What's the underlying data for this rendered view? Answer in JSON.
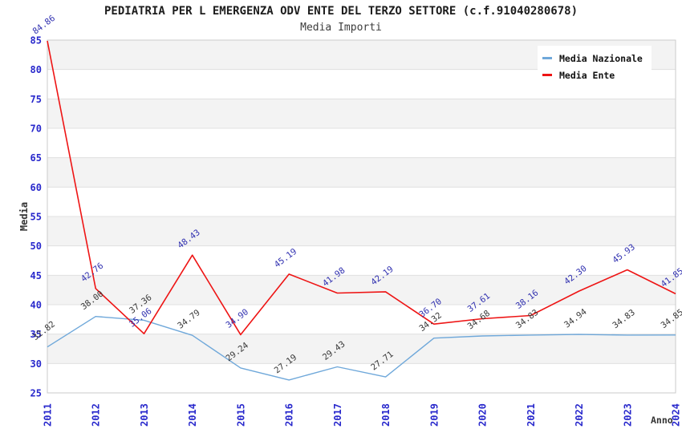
{
  "chart_data": {
    "type": "line",
    "title": "PEDIATRIA PER L EMERGENZA ODV ENTE DEL TERZO SETTORE (c.f.91040280678)",
    "subtitle": "Media Importi",
    "xlabel": "Anno",
    "ylabel": "Media",
    "x": [
      "2011",
      "2012",
      "2013",
      "2014",
      "2015",
      "2016",
      "2017",
      "2018",
      "2019",
      "2020",
      "2021",
      "2022",
      "2023",
      "2024"
    ],
    "ylim": [
      25,
      85
    ],
    "ytick_step": 5,
    "grid": true,
    "legend_position": "top-right",
    "series": [
      {
        "name": "Media Nazionale",
        "color": "#6fa8da",
        "label_color": "#383838",
        "values": [
          32.82,
          38.0,
          37.36,
          34.79,
          29.24,
          27.19,
          29.43,
          27.71,
          34.32,
          34.68,
          34.83,
          34.94,
          34.83,
          34.85
        ]
      },
      {
        "name": "Media Ente",
        "color": "#ee1414",
        "label_color": "#3030b0",
        "values": [
          84.86,
          42.76,
          35.06,
          48.43,
          34.9,
          45.19,
          41.98,
          42.19,
          36.7,
          37.61,
          38.16,
          42.3,
          45.93,
          41.85
        ]
      }
    ],
    "colors": {
      "band": "#f3f3f3",
      "gridline": "#e0e0e0",
      "plot_border": "#cbcbcb",
      "axis_tick_text": "#2828cc"
    }
  }
}
